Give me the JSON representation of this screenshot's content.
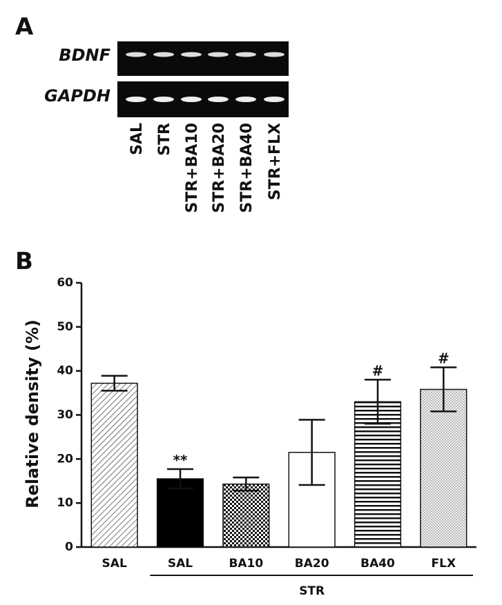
{
  "panel_a": {
    "label": "A",
    "rows": [
      "BDNF",
      "GAPDH"
    ],
    "lanes": [
      "SAL",
      "STR",
      "STR+BA10",
      "STR+BA20",
      "STR+BA40",
      "STR+FLX"
    ]
  },
  "chart_data": {
    "type": "bar",
    "panel_label": "B",
    "ylabel": "Relative density (%)",
    "categories": [
      "SAL",
      "SAL",
      "BA10",
      "BA20",
      "BA40",
      "FLX"
    ],
    "values": [
      37.2,
      15.5,
      14.3,
      21.5,
      33,
      35.8
    ],
    "errors": [
      1.7,
      2.2,
      1.5,
      7.4,
      5,
      5
    ],
    "annotations": [
      null,
      "**",
      null,
      null,
      "#",
      "#"
    ],
    "fills": [
      "hatch",
      "black",
      "checker",
      "white",
      "hlines",
      "dots"
    ],
    "group": {
      "label": "STR",
      "start": 1,
      "end": 5
    },
    "ylim": [
      0,
      60
    ],
    "yticks": [
      0,
      10,
      20,
      30,
      40,
      50,
      60
    ]
  }
}
